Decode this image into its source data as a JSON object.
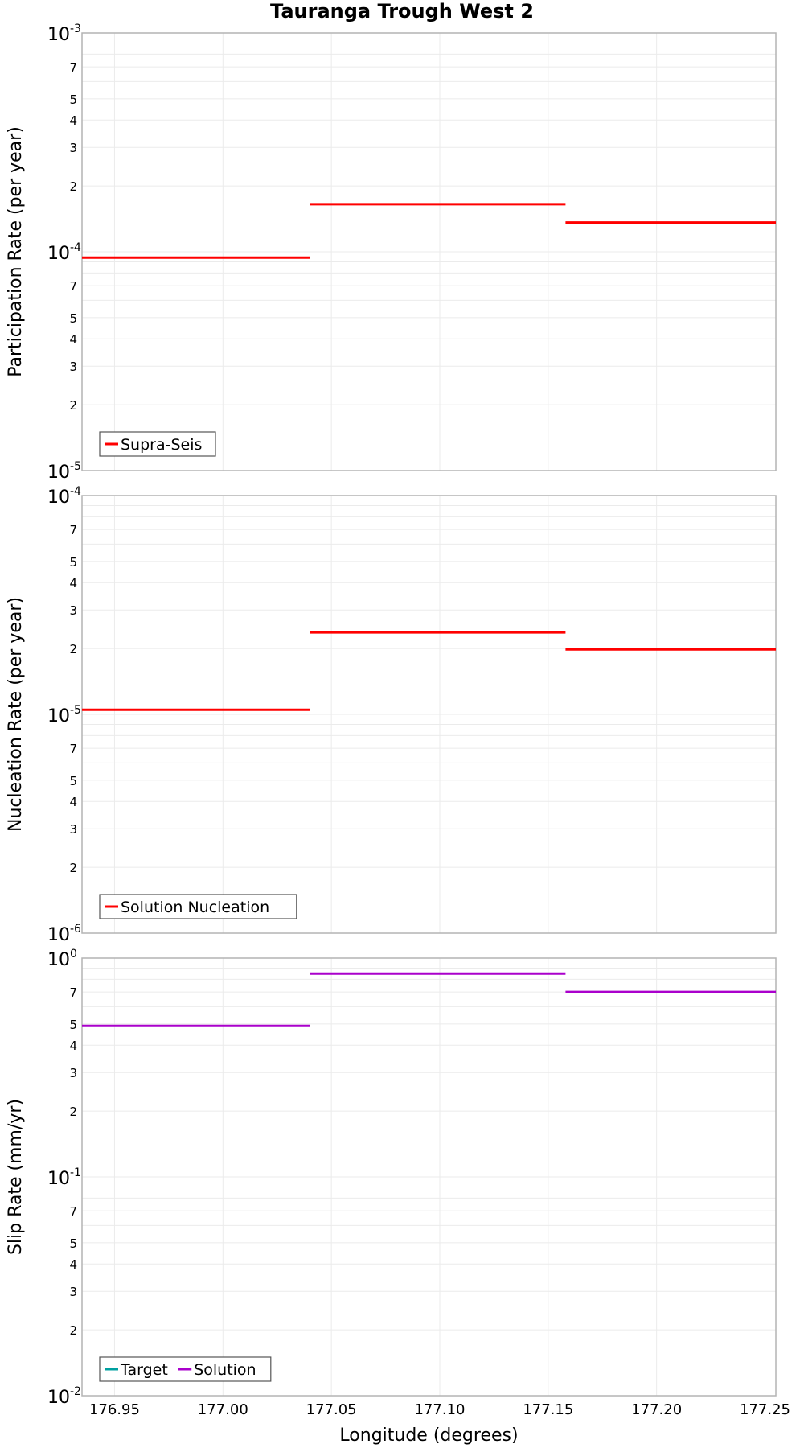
{
  "figure_title": "Tauranga Trough West 2",
  "colors": {
    "supra_seis": "#ff0000",
    "nucleation": "#ff0000",
    "target": "#00a0a0",
    "solution": "#aa00cc",
    "grid": "#ebebeb",
    "frame": "#b4b4b4"
  },
  "chart_data": [
    {
      "type": "line",
      "id": "participation",
      "title": "Tauranga Trough West 2",
      "ylabel": "Participation Rate (per year)",
      "xlabel": "",
      "yscale": "log",
      "ylim": [
        1e-05,
        0.001
      ],
      "xlim": [
        176.935,
        177.255
      ],
      "major_ticks": [
        {
          "base": "10",
          "exp": "-3"
        },
        {
          "base": "10",
          "exp": "-4"
        },
        {
          "base": "10",
          "exp": "-5"
        }
      ],
      "minor_tick_labels": [
        "7",
        "5",
        "4",
        "3",
        "2"
      ],
      "legend": [
        {
          "name": "Supra-Seis",
          "color": "#ff0000"
        }
      ],
      "series": [
        {
          "name": "Supra-Seis",
          "color": "#ff0000",
          "segments": [
            {
              "x": [
                176.935,
                177.04
              ],
              "y": 9.4e-05
            },
            {
              "x": [
                177.04,
                177.158
              ],
              "y": 0.000165
            },
            {
              "x": [
                177.158,
                177.255
              ],
              "y": 0.000136
            }
          ]
        }
      ]
    },
    {
      "type": "line",
      "id": "nucleation",
      "ylabel": "Nucleation Rate (per year)",
      "xlabel": "",
      "yscale": "log",
      "ylim": [
        1e-06,
        0.0001
      ],
      "xlim": [
        176.935,
        177.255
      ],
      "major_ticks": [
        {
          "base": "10",
          "exp": "-4"
        },
        {
          "base": "10",
          "exp": "-5"
        },
        {
          "base": "10",
          "exp": "-6"
        }
      ],
      "minor_tick_labels": [
        "7",
        "5",
        "4",
        "3",
        "2"
      ],
      "legend": [
        {
          "name": "Solution Nucleation",
          "color": "#ff0000"
        }
      ],
      "series": [
        {
          "name": "Solution Nucleation",
          "color": "#ff0000",
          "segments": [
            {
              "x": [
                176.935,
                177.04
              ],
              "y": 1.05e-05
            },
            {
              "x": [
                177.04,
                177.158
              ],
              "y": 2.37e-05
            },
            {
              "x": [
                177.158,
                177.255
              ],
              "y": 1.98e-05
            }
          ]
        }
      ]
    },
    {
      "type": "line",
      "id": "slip",
      "ylabel": "Slip Rate (mm/yr)",
      "xlabel": "Longitude (degrees)",
      "yscale": "log",
      "ylim": [
        0.01,
        1
      ],
      "xlim": [
        176.935,
        177.255
      ],
      "x_tick_labels": [
        "176.95",
        "177.00",
        "177.05",
        "177.10",
        "177.15",
        "177.20",
        "177.25"
      ],
      "x_ticks": [
        176.95,
        177.0,
        177.05,
        177.1,
        177.15,
        177.2,
        177.25
      ],
      "major_ticks": [
        {
          "base": "10",
          "exp": "0"
        },
        {
          "base": "10",
          "exp": "-1"
        },
        {
          "base": "10",
          "exp": "-2"
        }
      ],
      "minor_tick_labels": [
        "7",
        "5",
        "4",
        "3",
        "2"
      ],
      "legend": [
        {
          "name": "Target",
          "color": "#00a0a0"
        },
        {
          "name": "Solution",
          "color": "#aa00cc"
        }
      ],
      "series": [
        {
          "name": "Target",
          "color": "#00a0a0",
          "segments": []
        },
        {
          "name": "Solution",
          "color": "#aa00cc",
          "segments": [
            {
              "x": [
                176.935,
                177.04
              ],
              "y": 0.49
            },
            {
              "x": [
                177.04,
                177.158
              ],
              "y": 0.85
            },
            {
              "x": [
                177.158,
                177.255
              ],
              "y": 0.7
            }
          ]
        }
      ]
    }
  ]
}
